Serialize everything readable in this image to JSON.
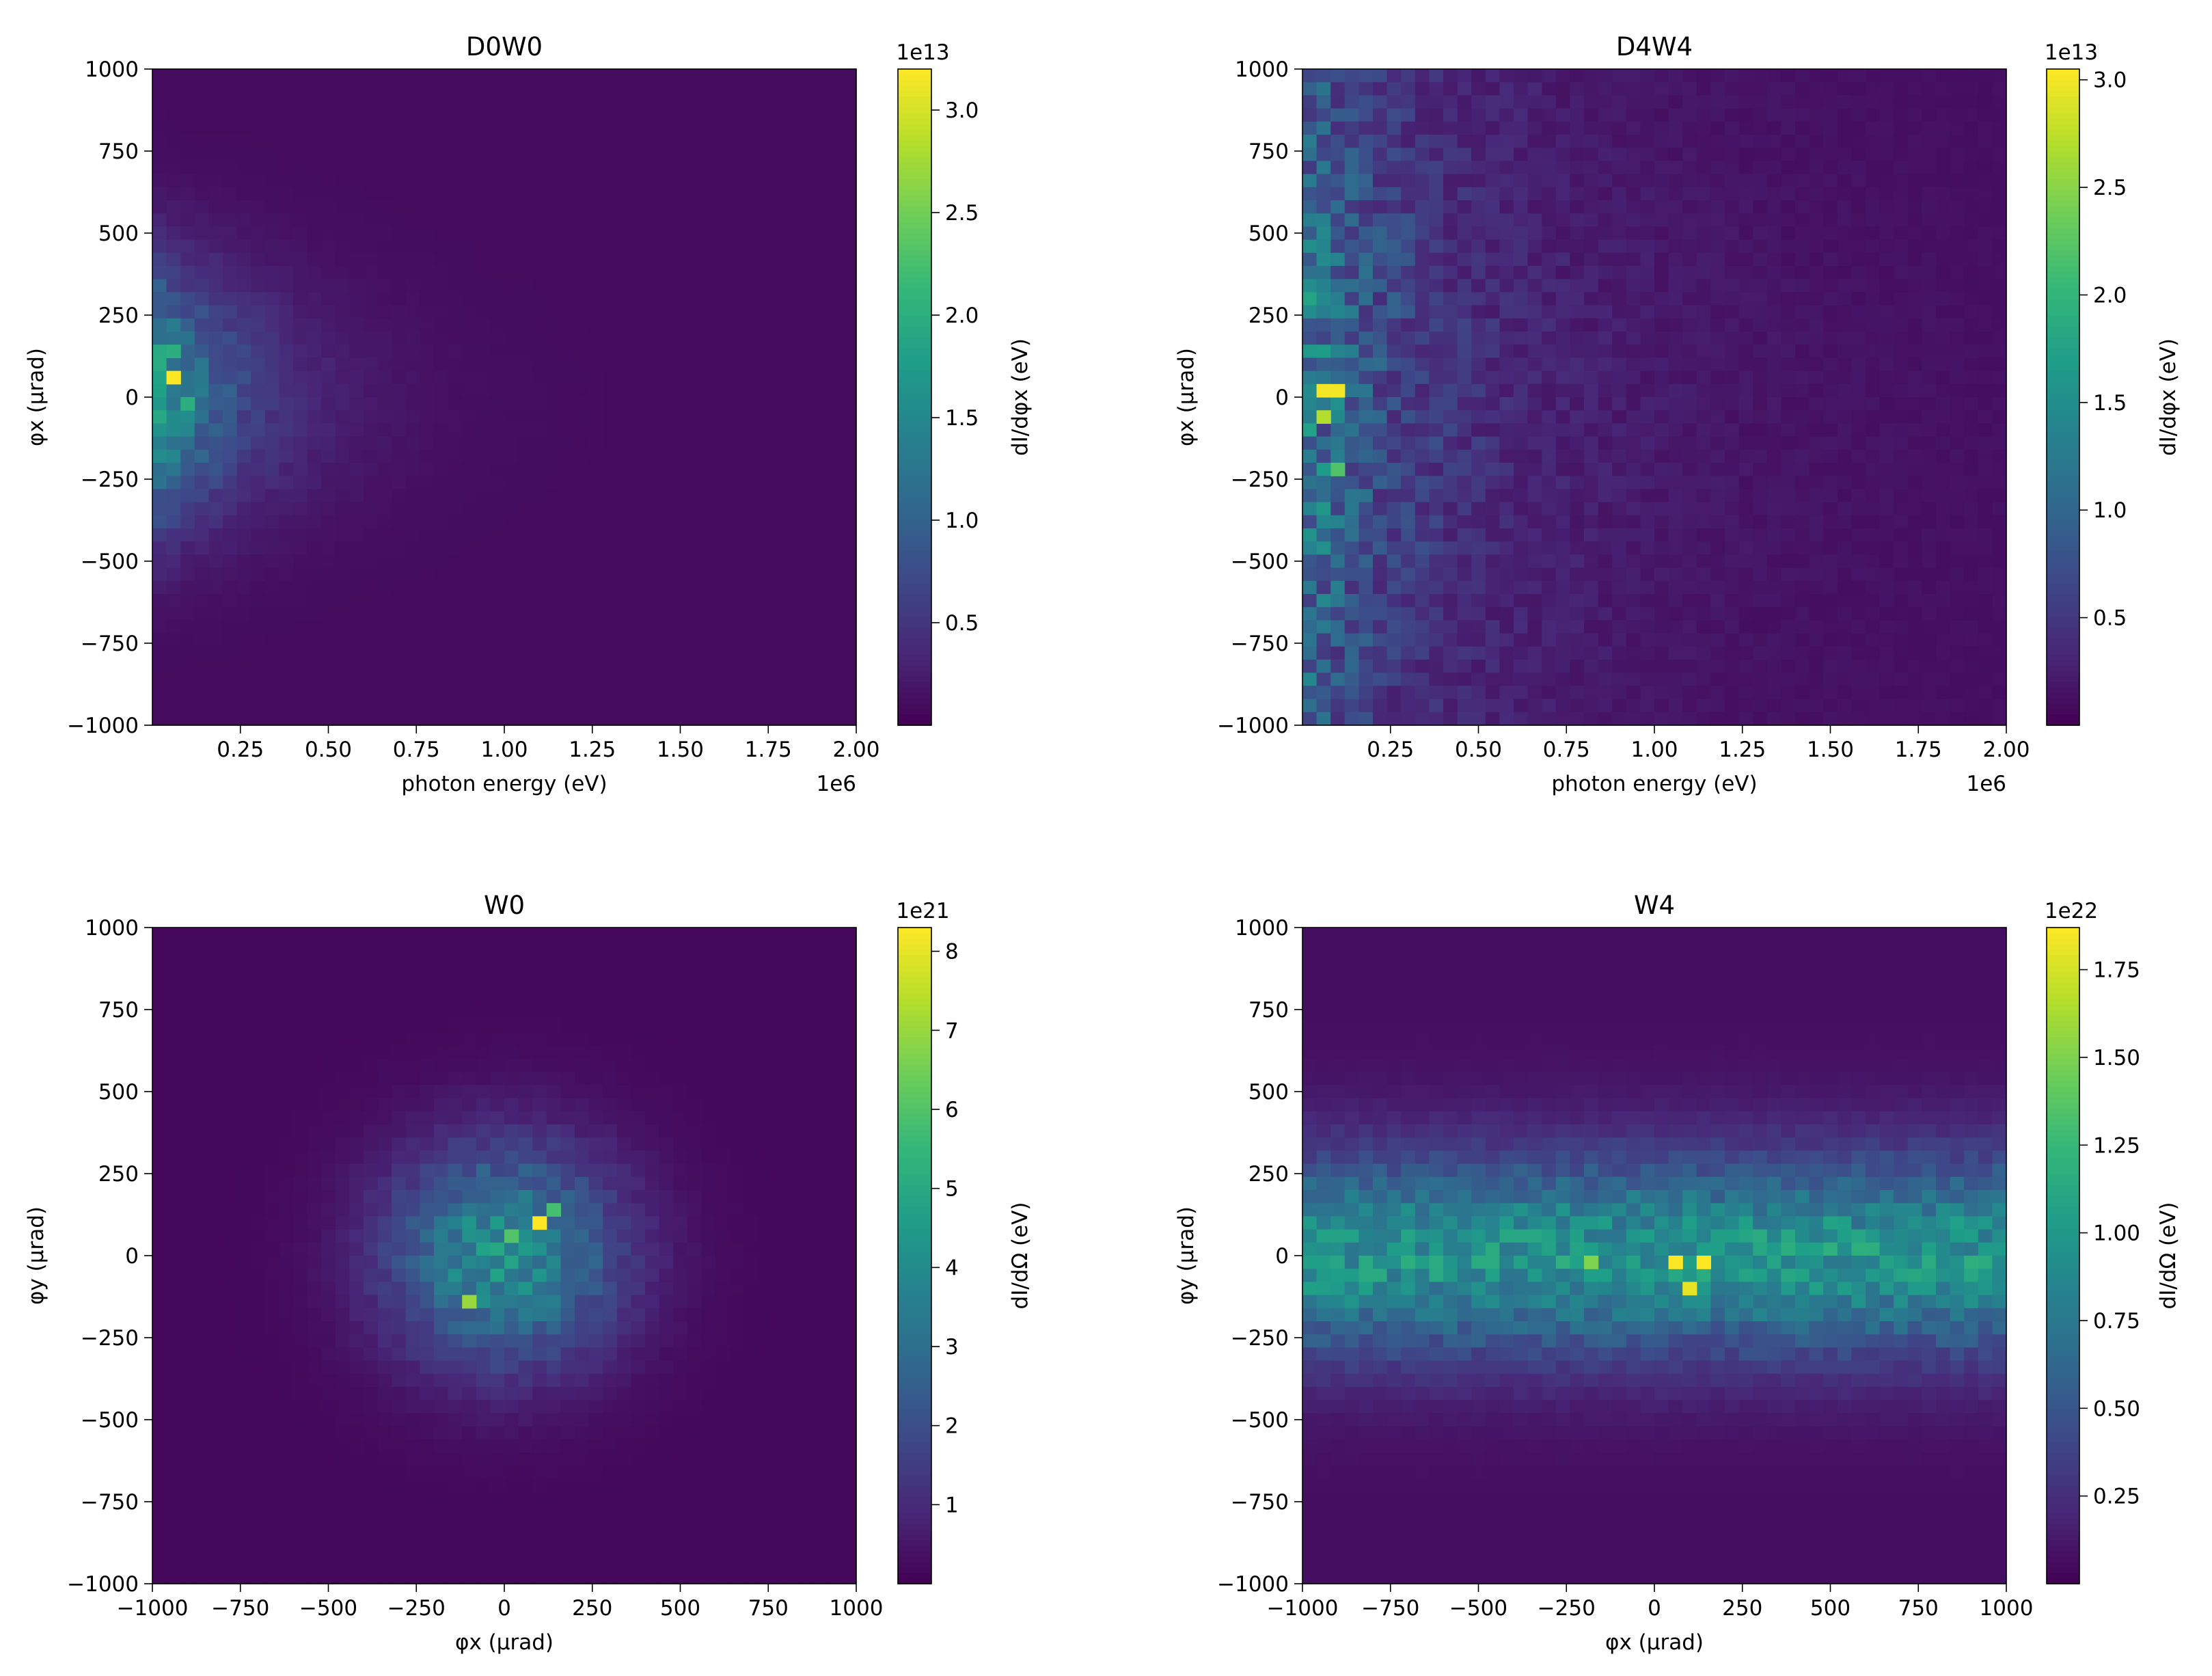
{
  "chart_data": [
    {
      "type": "heatmap",
      "title": "D0W0",
      "xlabel": "photon energy (eV)",
      "ylabel": "φx (μrad)",
      "x_offset_label": "1e6",
      "xlim": [
        0,
        2000000
      ],
      "ylim": [
        -1000,
        1000
      ],
      "xticks": [
        "0.25",
        "0.50",
        "0.75",
        "1.00",
        "1.25",
        "1.50",
        "1.75",
        "2.00"
      ],
      "yticks": [
        "1000",
        "750",
        "500",
        "250",
        "0",
        "−250",
        "−500",
        "−750",
        "−1000"
      ],
      "colorbar": {
        "label": "dI/dφx (eV)",
        "exponent": "1e13",
        "range": [
          0,
          3.2
        ],
        "ticks": [
          "3.0",
          "2.5",
          "2.0",
          "1.5",
          "1.0",
          "0.5"
        ],
        "tick_values": [
          3.0,
          2.5,
          2.0,
          1.5,
          1.0,
          0.5
        ]
      },
      "colormap": "viridis",
      "pattern": "energy",
      "peak_cells": [
        {
          "x": 40000,
          "y": 80,
          "value": 3.2
        },
        {
          "x": 40000,
          "y": 160,
          "value": 2.0
        },
        {
          "x": 80000,
          "y": 0,
          "value": 2.0
        }
      ]
    },
    {
      "type": "heatmap",
      "title": "D4W4",
      "xlabel": "photon energy (eV)",
      "ylabel": "φx (μrad)",
      "x_offset_label": "1e6",
      "xlim": [
        0,
        2000000
      ],
      "ylim": [
        -1000,
        1000
      ],
      "xticks": [
        "0.25",
        "0.50",
        "0.75",
        "1.00",
        "1.25",
        "1.50",
        "1.75",
        "2.00"
      ],
      "yticks": [
        "1000",
        "750",
        "500",
        "250",
        "0",
        "−250",
        "−500",
        "−750",
        "−1000"
      ],
      "colorbar": {
        "label": "dI/dφx (eV)",
        "exponent": "1e13",
        "range": [
          0,
          3.05
        ],
        "ticks": [
          "3.0",
          "2.5",
          "2.0",
          "1.5",
          "1.0",
          "0.5"
        ],
        "tick_values": [
          3.0,
          2.5,
          2.0,
          1.5,
          1.0,
          0.5
        ]
      },
      "colormap": "viridis",
      "pattern": "energy_wide",
      "peak_cells": [
        {
          "x": 40000,
          "y": 40,
          "value": 3.0
        },
        {
          "x": 80000,
          "y": 40,
          "value": 3.0
        },
        {
          "x": 40000,
          "y": -40,
          "value": 2.7
        },
        {
          "x": 80000,
          "y": -200,
          "value": 2.2
        }
      ]
    },
    {
      "type": "heatmap",
      "title": "W0",
      "xlabel": "φx (μrad)",
      "ylabel": "φy (μrad)",
      "xlim": [
        -1000,
        1000
      ],
      "ylim": [
        -1000,
        1000
      ],
      "xticks": [
        "−1000",
        "−750",
        "−500",
        "−250",
        "0",
        "250",
        "500",
        "750",
        "1000"
      ],
      "yticks": [
        "1000",
        "750",
        "500",
        "250",
        "0",
        "−250",
        "−500",
        "−750",
        "−1000"
      ],
      "colorbar": {
        "label": "dI/dΩ (eV)",
        "exponent": "1e21",
        "range": [
          0,
          8.3
        ],
        "ticks": [
          "8",
          "7",
          "6",
          "5",
          "4",
          "3",
          "2",
          "1"
        ],
        "tick_values": [
          8,
          7,
          6,
          5,
          4,
          3,
          2,
          1
        ]
      },
      "colormap": "viridis",
      "pattern": "gauss",
      "peak_cells": [
        {
          "x": 80,
          "y": 120,
          "value": 8.3
        },
        {
          "x": -120,
          "y": -120,
          "value": 7.0
        },
        {
          "x": 0,
          "y": 80,
          "value": 6.0
        },
        {
          "x": 160,
          "y": 160,
          "value": 5.8
        }
      ]
    },
    {
      "type": "heatmap",
      "title": "W4",
      "xlabel": "φx (μrad)",
      "ylabel": "φy (μrad)",
      "xlim": [
        -1000,
        1000
      ],
      "ylim": [
        -1000,
        1000
      ],
      "xticks": [
        "−1000",
        "−750",
        "−500",
        "−250",
        "0",
        "250",
        "500",
        "750",
        "1000"
      ],
      "yticks": [
        "1000",
        "750",
        "500",
        "250",
        "0",
        "−250",
        "−500",
        "−750",
        "−1000"
      ],
      "colorbar": {
        "label": "dI/dΩ (eV)",
        "exponent": "1e22",
        "range": [
          0,
          1.87
        ],
        "ticks": [
          "1.75",
          "1.50",
          "1.25",
          "1.00",
          "0.75",
          "0.50",
          "0.25"
        ],
        "tick_values": [
          1.75,
          1.5,
          1.25,
          1.0,
          0.75,
          0.5,
          0.25
        ]
      },
      "colormap": "viridis",
      "pattern": "band",
      "peak_cells": [
        {
          "x": 40,
          "y": 0,
          "value": 1.87
        },
        {
          "x": 120,
          "y": 0,
          "value": 1.87
        },
        {
          "x": 80,
          "y": -80,
          "value": 1.8
        },
        {
          "x": -200,
          "y": 0,
          "value": 1.5
        }
      ]
    }
  ]
}
